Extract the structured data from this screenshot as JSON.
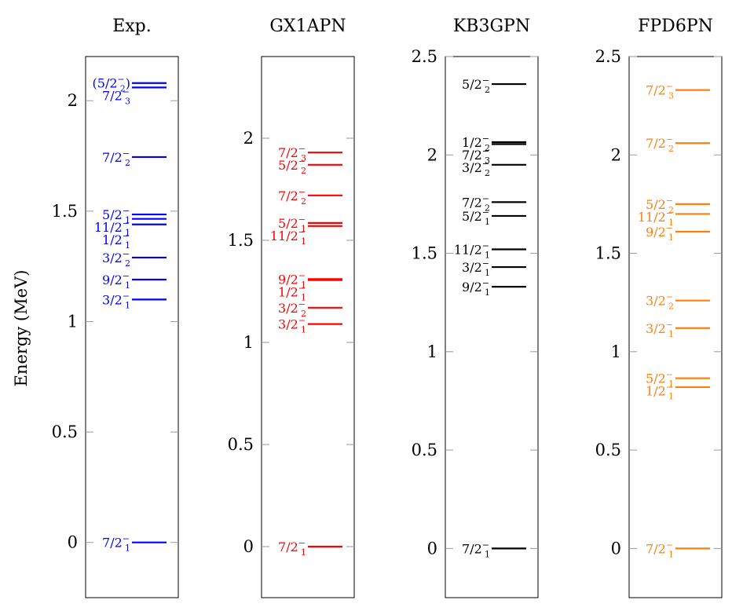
{
  "chart_data": {
    "type": "level-scheme",
    "ylabel": "Energy (MeV)",
    "panels": [
      {
        "title": "Exp.",
        "color": "#0000ff",
        "ylim": [
          -0.25,
          2.2
        ],
        "yticks": [
          0,
          0.5,
          1,
          1.5,
          2
        ],
        "levels": [
          {
            "energy": 0.0,
            "num": "7/2",
            "sub": "1",
            "sup": "−"
          },
          {
            "energy": 1.1,
            "num": "3/2",
            "sub": "1",
            "sup": "−"
          },
          {
            "energy": 1.19,
            "num": "9/2",
            "sub": "1",
            "sup": "−"
          },
          {
            "energy": 1.29,
            "num": "3/2",
            "sub": "2",
            "sup": "−"
          },
          {
            "energy": 1.44,
            "num": "1/2",
            "sub": "1",
            "sup": "−"
          },
          {
            "energy": 1.465,
            "num": "11/2",
            "sub": "1",
            "sup": "−"
          },
          {
            "energy": 1.485,
            "num": "5/2",
            "sub": "1",
            "sup": "−"
          },
          {
            "energy": 1.745,
            "num": "7/2",
            "sub": "2",
            "sup": "−"
          },
          {
            "energy": 2.06,
            "num": "7/2",
            "sub": "3",
            "sup": "−"
          },
          {
            "energy": 2.08,
            "num": "(5/2",
            "sub": "2",
            "sup": "−",
            "suffix": ")"
          }
        ]
      },
      {
        "title": "GX1APN",
        "color": "#ff0000",
        "ylim": [
          -0.25,
          2.4
        ],
        "yticks": [
          0,
          0.5,
          1,
          1.5,
          2
        ],
        "levels": [
          {
            "energy": 0.0,
            "num": "7/2",
            "sub": "1",
            "sup": "−"
          },
          {
            "energy": 1.09,
            "num": "3/2",
            "sub": "1",
            "sup": "−"
          },
          {
            "energy": 1.17,
            "num": "3/2",
            "sub": "2",
            "sup": "−"
          },
          {
            "energy": 1.305,
            "num": "1/2",
            "sub": "1",
            "sup": "−"
          },
          {
            "energy": 1.31,
            "num": "9/2",
            "sub": "1",
            "sup": "−"
          },
          {
            "energy": 1.57,
            "num": "11/2",
            "sub": "1",
            "sup": "−"
          },
          {
            "energy": 1.585,
            "num": "5/2",
            "sub": "1",
            "sup": "−"
          },
          {
            "energy": 1.72,
            "num": "7/2",
            "sub": "2",
            "sup": "−"
          },
          {
            "energy": 1.87,
            "num": "5/2",
            "sub": "2",
            "sup": "−"
          },
          {
            "energy": 1.93,
            "num": "7/2",
            "sub": "3",
            "sup": "−"
          }
        ]
      },
      {
        "title": "KB3GPN",
        "color": "#000000",
        "ylim": [
          -0.25,
          2.5
        ],
        "yticks": [
          0,
          0.5,
          1,
          1.5,
          2,
          2.5
        ],
        "ytick_labels": [
          "0",
          "0.5",
          "1",
          "1.5",
          "2",
          "2.5"
        ],
        "levels": [
          {
            "energy": 0.0,
            "num": "7/2",
            "sub": "1",
            "sup": "−"
          },
          {
            "energy": 1.33,
            "num": "9/2",
            "sub": "1",
            "sup": "−"
          },
          {
            "energy": 1.43,
            "num": "3/2",
            "sub": "1",
            "sup": "−"
          },
          {
            "energy": 1.52,
            "num": "11/2",
            "sub": "1",
            "sup": "−"
          },
          {
            "energy": 1.69,
            "num": "5/2",
            "sub": "1",
            "sup": "−"
          },
          {
            "energy": 1.76,
            "num": "7/2",
            "sub": "2",
            "sup": "−"
          },
          {
            "energy": 1.95,
            "num": "3/2",
            "sub": "2",
            "sup": "−"
          },
          {
            "energy": 2.055,
            "num": "7/2",
            "sub": "3",
            "sup": "−"
          },
          {
            "energy": 2.065,
            "num": "1/2",
            "sub": "2",
            "sup": "−"
          },
          {
            "energy": 2.36,
            "num": "5/2",
            "sub": "2",
            "sup": "−"
          }
        ]
      },
      {
        "title": "FPD6PN",
        "color": "#ff7f0e",
        "ylim": [
          -0.25,
          2.5
        ],
        "yticks": [
          0,
          0.5,
          1,
          1.5,
          2,
          2.5
        ],
        "ytick_labels": [
          "0",
          "0.5",
          "1",
          "1.5",
          "2",
          "2.5"
        ],
        "levels": [
          {
            "energy": 0.0,
            "num": "7/2",
            "sub": "1",
            "sup": "−"
          },
          {
            "energy": 0.82,
            "num": "1/2",
            "sub": "1",
            "sup": "−"
          },
          {
            "energy": 0.865,
            "num": "5/2",
            "sub": "1",
            "sup": "−"
          },
          {
            "energy": 1.12,
            "num": "3/2",
            "sub": "1",
            "sup": "−"
          },
          {
            "energy": 1.26,
            "num": "3/2",
            "sub": "2",
            "sup": "−"
          },
          {
            "energy": 1.61,
            "num": "9/2",
            "sub": "1",
            "sup": "−"
          },
          {
            "energy": 1.7,
            "num": "11/2",
            "sub": "1",
            "sup": "−"
          },
          {
            "energy": 1.75,
            "num": "5/2",
            "sub": "2",
            "sup": "−"
          },
          {
            "energy": 2.06,
            "num": "7/2",
            "sub": "2",
            "sup": "−"
          },
          {
            "energy": 2.33,
            "num": "7/2",
            "sub": "3",
            "sup": "−"
          }
        ]
      }
    ]
  }
}
